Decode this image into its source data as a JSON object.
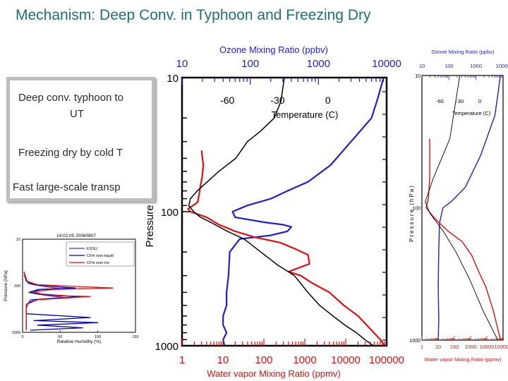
{
  "slide": {
    "title": "Mechanism: Deep Conv. in Typhoon and Freezing Dry",
    "bullets": {
      "b1_line1": "Deep conv. typhoon to",
      "b1_line2": "UT",
      "b2": "Freezing dry by cold T",
      "b3": "Fast large-scale transp"
    }
  },
  "chart_data": [
    {
      "id": "main-sounding",
      "type": "line",
      "title": "",
      "top_axis": {
        "label": "Ozone Mixing Ratio (ppbv)",
        "ticks": [
          "10",
          "100",
          "1000",
          "10000"
        ],
        "range": [
          10,
          10000
        ],
        "scale": "log",
        "color": "#1f1fd0"
      },
      "bottom_axis": {
        "label": "Water vapor Mixing Ratio (ppmv)",
        "ticks": [
          "1",
          "10",
          "100",
          "1000",
          "10000",
          "100000"
        ],
        "range": [
          1,
          100000
        ],
        "scale": "log",
        "color": "#e01010"
      },
      "temperature_axis": {
        "label": "Temperature (C)",
        "ticks": [
          "-60",
          "-30",
          "0"
        ],
        "range": [
          -87,
          35
        ]
      },
      "y_axis": {
        "label": "Pressure (hPa)",
        "ticks": [
          "10",
          "100",
          "1000"
        ],
        "range": [
          1000,
          10
        ],
        "scale": "log"
      },
      "series": [
        {
          "name": "Ozone",
          "color": "#1f1fd0",
          "points": [
            [
              9000,
              10
            ],
            [
              7500,
              14
            ],
            [
              6000,
              20
            ],
            [
              3000,
              30
            ],
            [
              1500,
              45
            ],
            [
              700,
              60
            ],
            [
              350,
              70
            ],
            [
              200,
              80
            ],
            [
              90,
              90
            ],
            [
              55,
              100
            ],
            [
              60,
              110
            ],
            [
              160,
              120
            ],
            [
              300,
              125
            ],
            [
              400,
              130
            ],
            [
              350,
              140
            ],
            [
              200,
              150
            ],
            [
              70,
              160
            ],
            [
              50,
              200
            ],
            [
              48,
              300
            ],
            [
              45,
              400
            ],
            [
              45,
              500
            ],
            [
              40,
              600
            ],
            [
              40,
              700
            ],
            [
              45,
              800
            ],
            [
              40,
              900
            ],
            [
              42,
              1000
            ]
          ]
        },
        {
          "name": "Water vapor",
          "color": "#e01010",
          "points": [
            [
              3,
              35
            ],
            [
              3.3,
              45
            ],
            [
              3.1,
              55
            ],
            [
              2.8,
              65
            ],
            [
              2.6,
              75
            ],
            [
              2.4,
              85
            ],
            [
              1.4,
              95
            ],
            [
              1.6,
              100
            ],
            [
              4,
              110
            ],
            [
              8,
              125
            ],
            [
              20,
              140
            ],
            [
              60,
              155
            ],
            [
              250,
              170
            ],
            [
              600,
              190
            ],
            [
              1200,
              210
            ],
            [
              1300,
              245
            ],
            [
              400,
              280
            ],
            [
              800,
              300
            ],
            [
              1500,
              340
            ],
            [
              4000,
              400
            ],
            [
              9000,
              500
            ],
            [
              20000,
              600
            ],
            [
              40000,
              750
            ],
            [
              70000,
              900
            ],
            [
              90000,
              1000
            ]
          ]
        },
        {
          "name": "Temperature",
          "color": "#000000",
          "points": [
            [
              -26,
              10
            ],
            [
              -28,
              15
            ],
            [
              -32,
              20
            ],
            [
              -40,
              25
            ],
            [
              -48,
              30
            ],
            [
              -55,
              40
            ],
            [
              -65,
              50
            ],
            [
              -72,
              60
            ],
            [
              -78,
              70
            ],
            [
              -82,
              80
            ],
            [
              -83,
              90
            ],
            [
              -80,
              100
            ],
            [
              -76,
              110
            ],
            [
              -70,
              120
            ],
            [
              -60,
              140
            ],
            [
              -50,
              160
            ],
            [
              -40,
              200
            ],
            [
              -30,
              250
            ],
            [
              -20,
              300
            ],
            [
              -12,
              400
            ],
            [
              -5,
              500
            ],
            [
              3,
              600
            ],
            [
              10,
              700
            ],
            [
              17,
              800
            ],
            [
              22,
              900
            ],
            [
              27,
              1000
            ]
          ]
        }
      ]
    },
    {
      "id": "rh-profile",
      "type": "line",
      "title": "14:02:05 20060807",
      "xlabel": "Relative Humidity (%)",
      "ylabel": "Pressure (hPa)",
      "x_ticks": [
        "0",
        "50",
        "100",
        "150"
      ],
      "y_ticks": [
        "10",
        "100",
        "1000"
      ],
      "xlim": [
        0,
        150
      ],
      "ylim": [
        1000,
        10
      ],
      "legend": [
        "KSSU",
        "CFH over liquid",
        "CFH over ice"
      ],
      "legend_position": "top-right",
      "series": [
        {
          "name": "KSSU",
          "color": "#4040c0",
          "points": [
            [
              2,
              60
            ],
            [
              8,
              90
            ],
            [
              30,
              105
            ],
            [
              50,
              115
            ],
            [
              20,
              120
            ],
            [
              8,
              140
            ],
            [
              30,
              160
            ],
            [
              55,
              180
            ],
            [
              10,
              200
            ],
            [
              5,
              300
            ],
            [
              5,
              500
            ],
            [
              5,
              900
            ]
          ]
        },
        {
          "name": "CFH over liquid",
          "color": "#0000b0",
          "points": [
            [
              2,
              50
            ],
            [
              5,
              80
            ],
            [
              15,
              95
            ],
            [
              55,
              108
            ],
            [
              70,
              112
            ],
            [
              25,
              120
            ],
            [
              10,
              135
            ],
            [
              20,
              150
            ],
            [
              50,
              165
            ],
            [
              80,
              170
            ],
            [
              15,
              200
            ],
            [
              5,
              250
            ],
            [
              5,
              400
            ],
            [
              90,
              480
            ],
            [
              15,
              560
            ],
            [
              100,
              620
            ],
            [
              20,
              700
            ],
            [
              80,
              800
            ],
            [
              10,
              900
            ]
          ]
        },
        {
          "name": "CFH over ice",
          "color": "#e01010",
          "points": [
            [
              2,
              50
            ],
            [
              6,
              80
            ],
            [
              20,
              95
            ],
            [
              80,
              105
            ],
            [
              120,
              112
            ],
            [
              40,
              120
            ],
            [
              15,
              135
            ],
            [
              25,
              150
            ],
            [
              60,
              165
            ],
            [
              90,
              170
            ],
            [
              20,
              200
            ],
            [
              5,
              250
            ],
            [
              5,
              900
            ]
          ]
        }
      ]
    },
    {
      "id": "small-sounding",
      "type": "line",
      "title": "",
      "top_axis": {
        "label": "Ozone Mixing Ratio (ppbv)",
        "ticks": [
          "10",
          "100",
          "1000",
          "10000"
        ]
      },
      "bottom_axis": {
        "label": "Water vapor Mixing Ratio (ppmv)",
        "ticks": [
          "1",
          "10",
          "100",
          "1000",
          "10000",
          "100000"
        ]
      },
      "temperature_axis": {
        "label": "Temperature (C)",
        "ticks": [
          "-60",
          "-30",
          "0"
        ]
      },
      "y_axis": {
        "label": "Pressure (hPa)",
        "ticks": [
          "10",
          "100",
          "1000"
        ]
      },
      "series": [
        {
          "name": "Ozone",
          "color": "#1f1fd0",
          "points": [
            [
              8000,
              10
            ],
            [
              5000,
              20
            ],
            [
              1500,
              40
            ],
            [
              400,
              70
            ],
            [
              120,
              90
            ],
            [
              60,
              100
            ],
            [
              45,
              130
            ],
            [
              42,
              200
            ],
            [
              40,
              400
            ],
            [
              42,
              700
            ],
            [
              40,
              1000
            ]
          ]
        },
        {
          "name": "Water vapor",
          "color": "#e01010",
          "points": [
            [
              3,
              30
            ],
            [
              3,
              60
            ],
            [
              2.5,
              85
            ],
            [
              1.8,
              100
            ],
            [
              6,
              120
            ],
            [
              40,
              150
            ],
            [
              300,
              180
            ],
            [
              1200,
              230
            ],
            [
              3000,
              300
            ],
            [
              9000,
              400
            ],
            [
              25000,
              600
            ],
            [
              70000,
              1000
            ]
          ]
        },
        {
          "name": "Temperature",
          "color": "#000000",
          "points": [
            [
              -30,
              10
            ],
            [
              -45,
              30
            ],
            [
              -70,
              60
            ],
            [
              -82,
              90
            ],
            [
              -75,
              110
            ],
            [
              -55,
              150
            ],
            [
              -35,
              220
            ],
            [
              -15,
              350
            ],
            [
              5,
              600
            ],
            [
              27,
              1000
            ]
          ]
        }
      ]
    }
  ]
}
